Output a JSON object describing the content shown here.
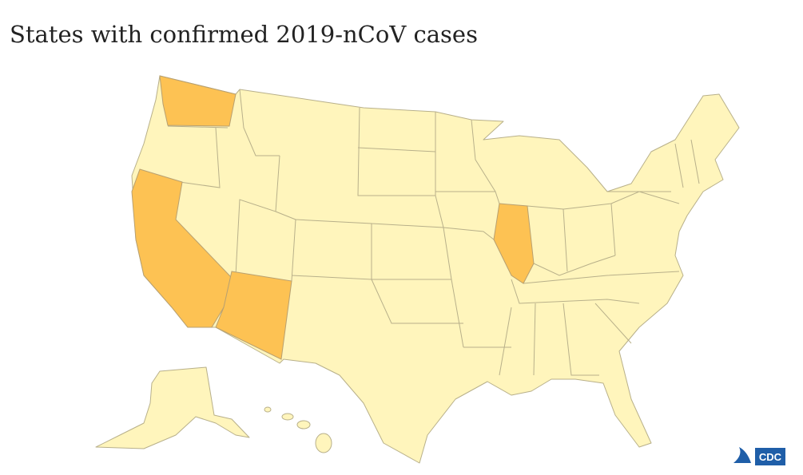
{
  "title": "States with confirmed 2019-nCoV cases",
  "logo": "CDC"
}
